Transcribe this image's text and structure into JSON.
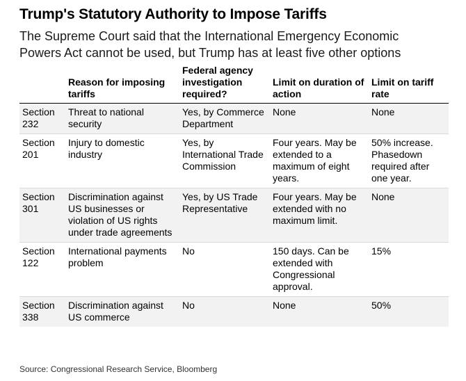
{
  "title": "Trump's Statutory Authority to Impose Tariffs",
  "subtitle_line1": "The Supreme Court said that the International Emergency Economic",
  "subtitle_line2": "Powers Act cannot be used, but Trump has at least five other options",
  "columns": [
    "",
    "Reason for imposing tariffs",
    "Federal agency investigation required?",
    "Limit on duration of action",
    "Limit on tariff rate"
  ],
  "rows": [
    {
      "section": "Section 232",
      "reason": "Threat to national security",
      "investigation": "Yes, by Commerce Department",
      "duration": "None",
      "rate": "None"
    },
    {
      "section": "Section 201",
      "reason": "Injury to domestic industry",
      "investigation": "Yes, by International Trade Commission",
      "duration": "Four years. May be extended to a maximum of eight years.",
      "rate": "50% increase. Phasedown required after one year."
    },
    {
      "section": "Section 301",
      "reason": "Discrimination against US businesses or violation of US rights under trade agreements",
      "investigation": "Yes, by US Trade Representative",
      "duration": "Four years. May be extended with no maximum limit.",
      "rate": "None"
    },
    {
      "section": "Section 122",
      "reason": "International payments problem",
      "investigation": "No",
      "duration": "150 days. Can be extended with Congressional approval.",
      "rate": "15%"
    },
    {
      "section": "Section 338",
      "reason": "Discrimination against US commerce",
      "investigation": "No",
      "duration": "None",
      "rate": "50%"
    }
  ],
  "source": "Source: Congressional Research Service, Bloomberg"
}
